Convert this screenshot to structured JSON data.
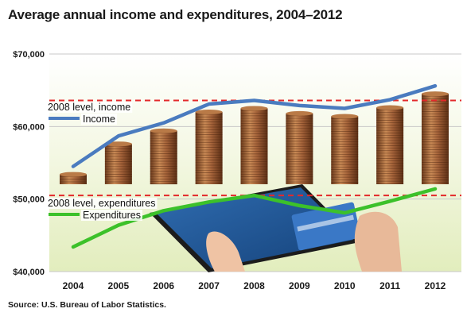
{
  "title": "Average annual income and expenditures, 2004–2012",
  "source": "Source: U.S. Bureau of Labor Statistics.",
  "colors": {
    "income": "#4a7bbf",
    "expenditures": "#3cc12a",
    "reference": "#e3282a",
    "background": "#e9f1c8"
  },
  "chart_data": {
    "type": "line",
    "title": "Average annual income and expenditures, 2004–2012",
    "xlabel": "",
    "ylabel": "",
    "ylim": [
      40000,
      70000
    ],
    "yticks": [
      40000,
      50000,
      60000,
      70000
    ],
    "ytick_labels": [
      "$40,000",
      "$50,000",
      "$60,000",
      "$70,000"
    ],
    "categories": [
      "2004",
      "2005",
      "2006",
      "2007",
      "2008",
      "2009",
      "2010",
      "2011",
      "2012"
    ],
    "grid": true,
    "series": [
      {
        "name": "Income",
        "color": "#4a7bbf",
        "values": [
          54500,
          58700,
          60500,
          63100,
          63600,
          62900,
          62500,
          63700,
          65600
        ]
      },
      {
        "name": "Expenditures",
        "color": "#3cc12a",
        "values": [
          43400,
          46400,
          48400,
          49600,
          50500,
          49100,
          48100,
          49700,
          51400
        ]
      }
    ],
    "reference_lines": [
      {
        "label": "2008 level, income",
        "value": 63600
      },
      {
        "label": "2008 level, expenditures",
        "value": 50500
      }
    ]
  }
}
